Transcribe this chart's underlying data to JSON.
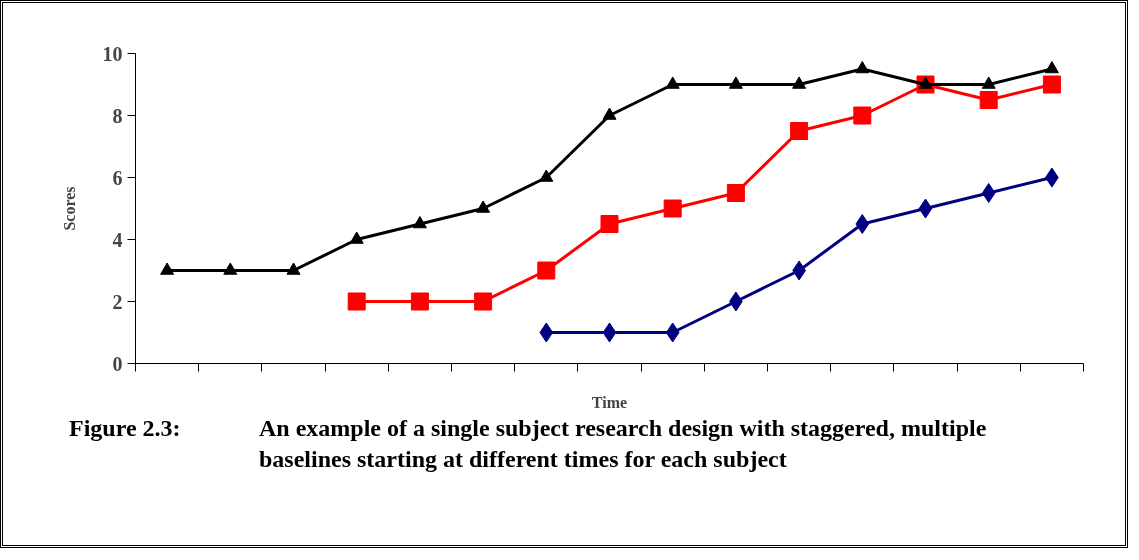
{
  "chart_data": {
    "type": "line",
    "xlabel": "Time",
    "ylabel": "Scores",
    "categories": [
      null,
      null,
      null,
      null,
      null,
      null,
      null,
      null,
      null,
      null,
      null,
      null,
      null,
      null,
      null
    ],
    "series": [
      {
        "color": "#000000",
        "marker": "triangle",
        "values": [
          3,
          3,
          3,
          4,
          4.5,
          5,
          6,
          8,
          9,
          9,
          9,
          9.5,
          9,
          9,
          9.5
        ]
      },
      {
        "color": "#ff0000",
        "marker": "square",
        "values": [
          null,
          null,
          null,
          2,
          2,
          2,
          3,
          4.5,
          5,
          5.5,
          7.5,
          8,
          9,
          8.5,
          9
        ]
      },
      {
        "color": "#000080",
        "marker": "diamond",
        "values": [
          null,
          null,
          null,
          null,
          null,
          null,
          1,
          1,
          1,
          2,
          3,
          4.5,
          5,
          5.5,
          6
        ]
      }
    ],
    "ylim": [
      0,
      10
    ],
    "yticks": [
      0,
      2,
      4,
      6,
      8,
      10
    ],
    "grid": false,
    "annotations": [
      "Figure 2.3:",
      "An example of a single subject research design with staggered, multiple baselines starting at different times for each subject"
    ]
  }
}
